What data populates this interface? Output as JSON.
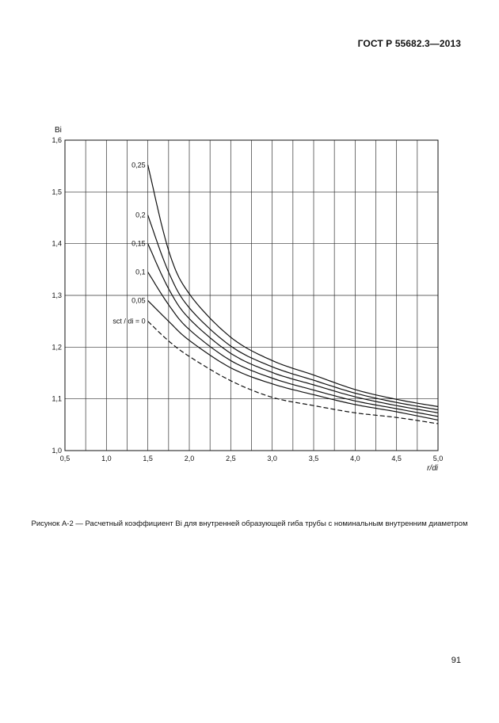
{
  "header": {
    "standard": "ГОСТ Р 55682.3—2013"
  },
  "caption": {
    "text": "Рисунок А-2 — Расчетный коэффициент Bi для внутренней образующей гиба трубы с номинальным внутренним диаметром"
  },
  "page_number": "91",
  "chart_data": {
    "type": "line",
    "ylabel": "Bi",
    "xlabel": "r/di",
    "xlim": [
      0.5,
      5.0
    ],
    "ylim": [
      1.0,
      1.6
    ],
    "x_ticks": [
      "0,5",
      "1,0",
      "1,5",
      "2,0",
      "2,5",
      "3,0",
      "3,5",
      "4,0",
      "4,5",
      "5,0"
    ],
    "y_ticks": [
      "1,0",
      "1,1",
      "1,2",
      "1,3",
      "1,4",
      "1,5",
      "1,6"
    ],
    "grid": true,
    "x": [
      1.5,
      1.75,
      2.0,
      2.5,
      3.0,
      3.5,
      4.0,
      4.5,
      5.0
    ],
    "series": [
      {
        "label": "0,25",
        "dashed": false,
        "values": [
          1.552,
          1.387,
          1.303,
          1.219,
          1.174,
          1.146,
          1.118,
          1.099,
          1.085
        ]
      },
      {
        "label": "0,2",
        "dashed": false,
        "values": [
          1.455,
          1.345,
          1.276,
          1.202,
          1.162,
          1.136,
          1.111,
          1.093,
          1.079
        ]
      },
      {
        "label": "0,15",
        "dashed": false,
        "values": [
          1.4,
          1.313,
          1.255,
          1.188,
          1.151,
          1.127,
          1.104,
          1.087,
          1.073
        ]
      },
      {
        "label": "0,1",
        "dashed": false,
        "values": [
          1.345,
          1.282,
          1.234,
          1.174,
          1.14,
          1.117,
          1.096,
          1.081,
          1.066
        ]
      },
      {
        "label": "0,05",
        "dashed": false,
        "values": [
          1.29,
          1.25,
          1.213,
          1.16,
          1.129,
          1.108,
          1.089,
          1.075,
          1.059
        ]
      },
      {
        "label": "sct / di = 0",
        "dashed": true,
        "values": [
          1.25,
          1.212,
          1.182,
          1.135,
          1.103,
          1.087,
          1.073,
          1.064,
          1.052
        ]
      }
    ]
  }
}
